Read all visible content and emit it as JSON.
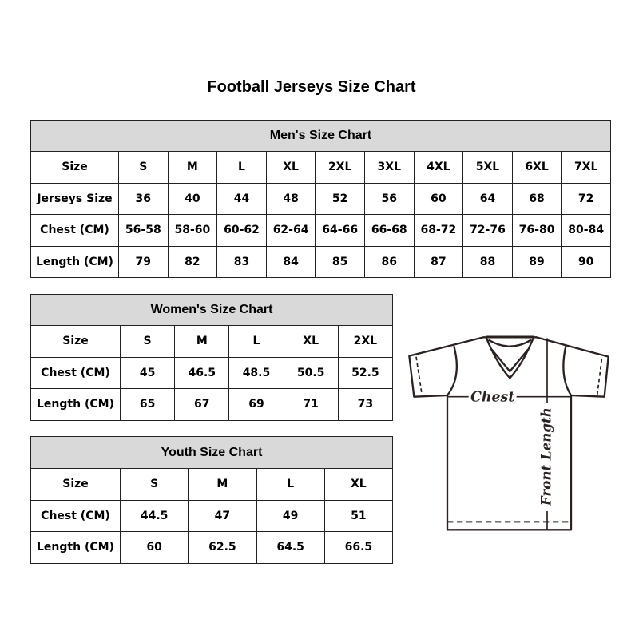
{
  "title": "Football Jerseys Size Chart",
  "men": {
    "heading": "Men's Size Chart",
    "rows": [
      [
        "Size",
        "S",
        "M",
        "L",
        "XL",
        "2XL",
        "3XL",
        "4XL",
        "5XL",
        "6XL",
        "7XL"
      ],
      [
        "Jerseys Size",
        "36",
        "40",
        "44",
        "48",
        "52",
        "56",
        "60",
        "64",
        "68",
        "72"
      ],
      [
        "Chest (CM)",
        "56-58",
        "58-60",
        "60-62",
        "62-64",
        "64-66",
        "66-68",
        "68-72",
        "72-76",
        "76-80",
        "80-84"
      ],
      [
        "Length (CM)",
        "79",
        "82",
        "83",
        "84",
        "85",
        "86",
        "87",
        "88",
        "89",
        "90"
      ]
    ]
  },
  "women": {
    "heading": "Women's Size Chart",
    "rows": [
      [
        "Size",
        "S",
        "M",
        "L",
        "XL",
        "2XL"
      ],
      [
        "Chest (CM)",
        "45",
        "46.5",
        "48.5",
        "50.5",
        "52.5"
      ],
      [
        "Length (CM)",
        "65",
        "67",
        "69",
        "71",
        "73"
      ]
    ]
  },
  "youth": {
    "heading": "Youth Size Chart",
    "rows": [
      [
        "Size",
        "S",
        "M",
        "L",
        "XL"
      ],
      [
        "Chest (CM)",
        "44.5",
        "47",
        "49",
        "51"
      ],
      [
        "Length (CM)",
        "60",
        "62.5",
        "64.5",
        "66.5"
      ]
    ]
  },
  "diagram": {
    "chest_label": "Chest",
    "length_label": "Front Length"
  },
  "colors": {
    "header_fill": "#d9d9d9",
    "border": "#222222"
  }
}
